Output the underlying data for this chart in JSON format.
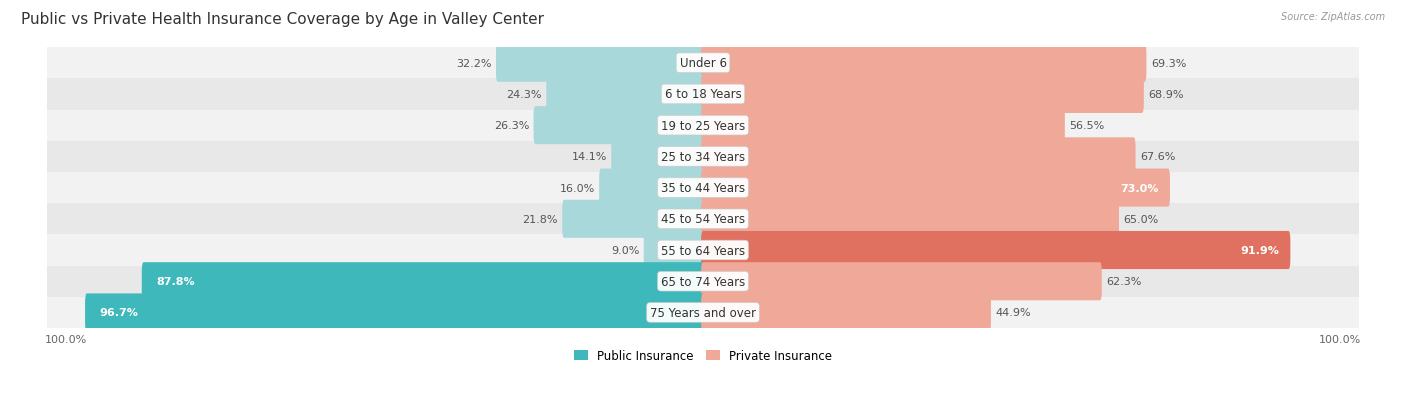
{
  "title": "Public vs Private Health Insurance Coverage by Age in Valley Center",
  "source": "Source: ZipAtlas.com",
  "categories": [
    "Under 6",
    "6 to 18 Years",
    "19 to 25 Years",
    "25 to 34 Years",
    "35 to 44 Years",
    "45 to 54 Years",
    "55 to 64 Years",
    "65 to 74 Years",
    "75 Years and over"
  ],
  "public_values": [
    32.2,
    24.3,
    26.3,
    14.1,
    16.0,
    21.8,
    9.0,
    87.8,
    96.7
  ],
  "private_values": [
    69.3,
    68.9,
    56.5,
    67.6,
    73.0,
    65.0,
    91.9,
    62.3,
    44.9
  ],
  "public_color_dark": "#3eb8ba",
  "public_color_light": "#a8d8d9",
  "private_color_dark": "#e07060",
  "private_color_light": "#f0a898",
  "row_bg_odd": "#f2f2f2",
  "row_bg_even": "#e8e8e8",
  "title_fontsize": 11,
  "label_fontsize": 8.5,
  "value_fontsize": 8,
  "background_color": "#ffffff",
  "axis_label_fontsize": 8,
  "legend_fontsize": 8.5,
  "pub_dark_threshold": 50,
  "priv_dark_threshold": 85,
  "priv_label_inside_threshold": 70
}
